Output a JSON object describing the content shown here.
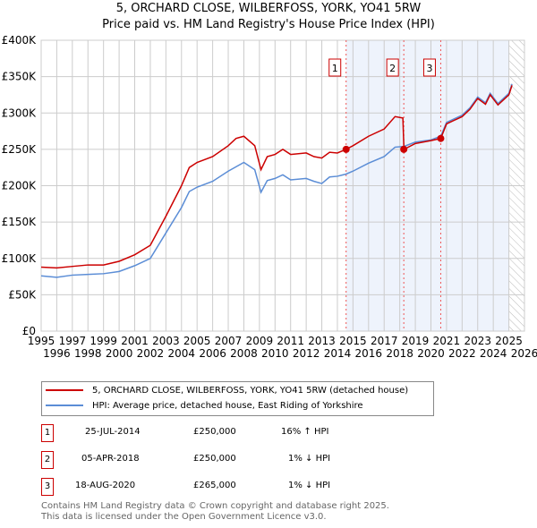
{
  "chart_data": {
    "type": "line",
    "title": "5, ORCHARD CLOSE, WILBERFOSS, YORK, YO41 5RW",
    "subtitle": "Price paid vs. HM Land Registry's House Price Index (HPI)",
    "xlim": [
      1995,
      2026
    ],
    "ylim": [
      0,
      400000
    ],
    "x_ticks": [
      "1995",
      "1996",
      "1997",
      "1998",
      "1999",
      "2000",
      "2001",
      "2002",
      "2003",
      "2004",
      "2005",
      "2006",
      "2007",
      "2008",
      "2009",
      "2010",
      "2011",
      "2012",
      "2013",
      "2014",
      "2015",
      "2016",
      "2017",
      "2018",
      "2019",
      "2020",
      "2021",
      "2022",
      "2023",
      "2024",
      "2025",
      "2026"
    ],
    "y_ticks": [
      "£0",
      "£50K",
      "£100K",
      "£150K",
      "£200K",
      "£250K",
      "£300K",
      "£350K",
      "£400K"
    ],
    "grid": true,
    "series": [
      {
        "name": "5, ORCHARD CLOSE, WILBERFOSS, YORK, YO41 5RW (detached house)",
        "color": "#cc0000",
        "x": [
          1995,
          1996,
          1997,
          1998,
          1999,
          2000,
          2001,
          2002,
          2003,
          2004,
          2004.5,
          2005,
          2006,
          2007,
          2007.5,
          2008,
          2008.7,
          2009.1,
          2009.5,
          2010,
          2010.5,
          2011,
          2012,
          2012.5,
          2013,
          2013.5,
          2014,
          2014.56,
          2015,
          2016,
          2017,
          2017.7,
          2018.2,
          2018.27,
          2019,
          2020,
          2020.63,
          2021,
          2022,
          2022.5,
          2023,
          2023.5,
          2023.8,
          2024.3,
          2025,
          2025.2
        ],
        "y": [
          88000,
          87000,
          89000,
          91000,
          91000,
          96000,
          105000,
          118000,
          158000,
          200000,
          225000,
          232000,
          240000,
          255000,
          265000,
          268000,
          255000,
          222000,
          240000,
          243000,
          250000,
          243000,
          245000,
          240000,
          238000,
          246000,
          245000,
          250000,
          255000,
          268000,
          278000,
          295000,
          293000,
          250000,
          258000,
          262000,
          265000,
          285000,
          295000,
          305000,
          320000,
          312000,
          325000,
          311000,
          325000,
          338000
        ]
      },
      {
        "name": "HPI: Average price, detached house, East Riding of Yorkshire",
        "color": "#5b8dd6",
        "x": [
          1995,
          1996,
          1997,
          1998,
          1999,
          2000,
          2001,
          2002,
          2003,
          2004,
          2004.5,
          2005,
          2006,
          2007,
          2008,
          2008.7,
          2009.1,
          2009.5,
          2010,
          2010.5,
          2011,
          2012,
          2012.5,
          2013,
          2013.5,
          2014,
          2014.56,
          2015,
          2016,
          2017,
          2017.7,
          2018.27,
          2019,
          2020,
          2020.63,
          2021,
          2022,
          2022.5,
          2023,
          2023.5,
          2023.8,
          2024.3,
          2025,
          2025.2
        ],
        "y": [
          76000,
          74000,
          77000,
          78000,
          79000,
          82000,
          90000,
          100000,
          135000,
          170000,
          192000,
          198000,
          206000,
          220000,
          232000,
          222000,
          191000,
          207000,
          210000,
          215000,
          208000,
          210000,
          206000,
          203000,
          212000,
          213000,
          216000,
          220000,
          231000,
          240000,
          253000,
          254000,
          260000,
          263000,
          268000,
          287000,
          297000,
          307000,
          322000,
          314000,
          327000,
          313000,
          327000,
          340000
        ]
      }
    ],
    "sales": [
      {
        "label": "1",
        "x": 2014.56,
        "price": 250000,
        "date": "25-JUL-2014",
        "price_text": "£250,000",
        "hpi": "16% ↑ HPI"
      },
      {
        "label": "2",
        "x": 2018.26,
        "price": 250000,
        "date": "05-APR-2018",
        "price_text": "£250,000",
        "hpi": "1% ↓ HPI"
      },
      {
        "label": "3",
        "x": 2020.63,
        "price": 265000,
        "date": "18-AUG-2020",
        "price_text": "£265,000",
        "hpi": "1% ↓ HPI"
      }
    ],
    "shaded_range": [
      2014.56,
      2025.0
    ],
    "forecast_from": 2025.0
  },
  "legend": {
    "red": "5, ORCHARD CLOSE, WILBERFOSS, YORK, YO41 5RW (detached house)",
    "blue": "HPI: Average price, detached house, East Riding of Yorkshire"
  },
  "footer": {
    "line1": "Contains HM Land Registry data © Crown copyright and database right 2025.",
    "line2": "This data is licensed under the Open Government Licence v3.0."
  }
}
